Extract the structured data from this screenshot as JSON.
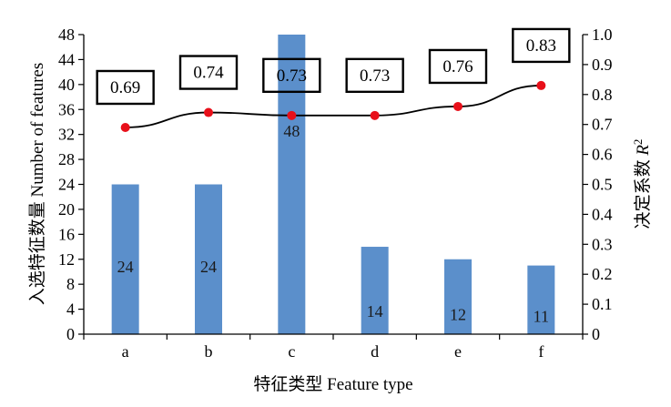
{
  "chart_data": {
    "type": "bar",
    "categories": [
      "a",
      "b",
      "c",
      "d",
      "e",
      "f"
    ],
    "xlabel": "特征类型 Feature type",
    "ylabel_left": "入选特征数量 Number of features",
    "ylabel_right_prefix": "决定系数 ",
    "ylabel_right_var": "R",
    "ylabel_right_sup": "2",
    "ylim_left": [
      0,
      48
    ],
    "yticks_left": [
      0,
      4,
      8,
      12,
      16,
      20,
      24,
      28,
      32,
      36,
      40,
      44,
      48
    ],
    "ylim_right": [
      0,
      1.0
    ],
    "yticks_right": [
      "0",
      "0.1",
      "0.2",
      "0.3",
      "0.4",
      "0.5",
      "0.6",
      "0.7",
      "0.8",
      "0.9",
      "1.0"
    ],
    "grid": false,
    "series": [
      {
        "kind": "bar",
        "axis": "left",
        "values": [
          24,
          24,
          48,
          14,
          12,
          11
        ],
        "labels": [
          "24",
          "24",
          "48",
          "14",
          "12",
          "11"
        ]
      },
      {
        "kind": "line",
        "axis": "right",
        "values": [
          0.69,
          0.74,
          0.73,
          0.73,
          0.76,
          0.83
        ],
        "labels": [
          "0.69",
          "0.74",
          "0.73",
          "0.73",
          "0.76",
          "0.83"
        ]
      }
    ],
    "colors": {
      "bar": "#5b8fcb",
      "line": "#000000",
      "marker": "#e8101a"
    }
  }
}
